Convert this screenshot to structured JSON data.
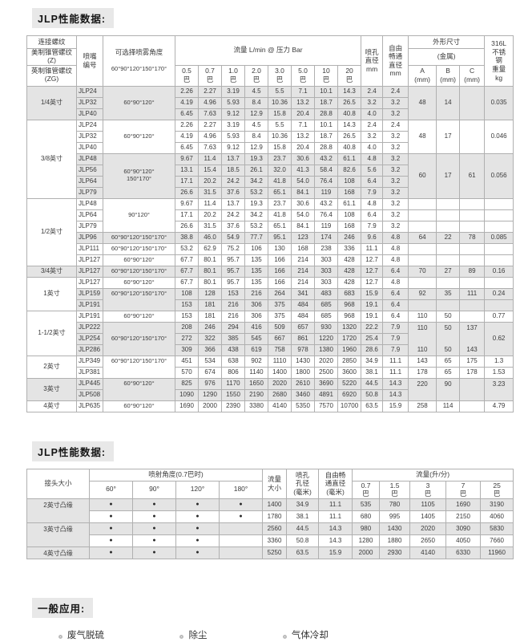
{
  "titles": {
    "t1": "JLP性能数据:",
    "t2": "JLP性能数据:"
  },
  "colors": {
    "shade": "#e4e4e4",
    "border": "#b0b0b0",
    "badge_bg": "#e8e8e8"
  },
  "table1": {
    "header": {
      "thread_title": "连接螺纹",
      "thread_us": "美制锥管螺纹(Z)",
      "thread_uk": "英制锥管螺纹(ZG)",
      "nozzle_l1": "喷嘴",
      "nozzle_l2": "编号",
      "angle_l1": "可选择喷雾角度",
      "angle_l2": "60°90°120°150°170°",
      "flow_title": "流量 L/min @ 压力 Bar",
      "pressures": [
        "0.5",
        "0.7",
        "1.0",
        "2.0",
        "3.0",
        "5.0",
        "10",
        "20"
      ],
      "bar": "巴",
      "orifice_lines": [
        "喷孔",
        "直径",
        "mm"
      ],
      "free_lines": [
        "自由",
        "畅通",
        "直径",
        "mm"
      ],
      "dims_title": "外形尺寸",
      "metal": "(金属)",
      "abc": [
        "A",
        "B",
        "C"
      ],
      "mm_label": "(mm)",
      "weight_lines": [
        "316L",
        "不锈",
        "钢",
        "重量",
        "kg"
      ]
    },
    "rows": [
      {
        "g": {
          "t": "1/4英寸",
          "s": 3
        },
        "m": "JLP24",
        "ang": {
          "t": "60°90°120°",
          "s": 3
        },
        "f": [
          "2.26",
          "2.27",
          "3.19",
          "4.5",
          "5.5",
          "7.1",
          "10.1",
          "14.3"
        ],
        "o": "2.4",
        "fr": "2.4",
        "a": {
          "t": "48",
          "s": 3
        },
        "b": {
          "t": "14",
          "s": 3
        },
        "c": {
          "t": "",
          "s": 3
        },
        "kg": {
          "t": "0.035",
          "s": 3
        },
        "sh": 1
      },
      {
        "g": null,
        "m": "JLP32",
        "ang": null,
        "f": [
          "4.19",
          "4.96",
          "5.93",
          "8.4",
          "10.36",
          "13.2",
          "18.7",
          "26.5"
        ],
        "o": "3.2",
        "fr": "3.2",
        "a": null,
        "b": null,
        "c": null,
        "kg": null,
        "sh": 1
      },
      {
        "g": null,
        "m": "JLP40",
        "ang": null,
        "f": [
          "6.45",
          "7.63",
          "9.12",
          "12.9",
          "15.8",
          "20.4",
          "28.8",
          "40.8"
        ],
        "o": "4.0",
        "fr": "3.2",
        "a": null,
        "b": null,
        "c": null,
        "kg": null,
        "sh": 1
      },
      {
        "g": {
          "t": "3/8英寸",
          "s": 7
        },
        "m": "JLP24",
        "ang": {
          "t": "60°90°120°",
          "s": 3
        },
        "f": [
          "2.26",
          "2.27",
          "3.19",
          "4.5",
          "5.5",
          "7.1",
          "10.1",
          "14.3"
        ],
        "o": "2.4",
        "fr": "2.4",
        "a": {
          "t": "48",
          "s": 3
        },
        "b": {
          "t": "17",
          "s": 3
        },
        "c": {
          "t": "",
          "s": 3
        },
        "kg": {
          "t": "0.046",
          "s": 3
        },
        "sh": 0
      },
      {
        "g": null,
        "m": "JLP32",
        "ang": null,
        "f": [
          "4.19",
          "4.96",
          "5.93",
          "8.4",
          "10.36",
          "13.2",
          "18.7",
          "26.5"
        ],
        "o": "3.2",
        "fr": "3.2",
        "a": null,
        "b": null,
        "c": null,
        "kg": null,
        "sh": 0
      },
      {
        "g": null,
        "m": "JLP40",
        "ang": null,
        "f": [
          "6.45",
          "7.63",
          "9.12",
          "12.9",
          "15.8",
          "20.4",
          "28.8",
          "40.8"
        ],
        "o": "4.0",
        "fr": "3.2",
        "a": null,
        "b": null,
        "c": null,
        "kg": null,
        "sh": 0
      },
      {
        "g": null,
        "m": "JLP48",
        "ang": {
          "t": "60°90°120°",
          "t2": "150°170°",
          "s": 4
        },
        "f": [
          "9.67",
          "11.4",
          "13.7",
          "19.3",
          "23.7",
          "30.6",
          "43.2",
          "61.1"
        ],
        "o": "4.8",
        "fr": "3.2",
        "a": {
          "t": "60",
          "s": 4
        },
        "b": {
          "t": "17",
          "s": 4
        },
        "c": {
          "t": "61",
          "s": 4
        },
        "kg": {
          "t": "0.056",
          "s": 4
        },
        "sh": 1
      },
      {
        "g": null,
        "m": "JLP56",
        "ang": null,
        "f": [
          "13.1",
          "15.4",
          "18.5",
          "26.1",
          "32.0",
          "41.3",
          "58.4",
          "82.6"
        ],
        "o": "5.6",
        "fr": "3.2",
        "a": null,
        "b": null,
        "c": null,
        "kg": null,
        "sh": 1
      },
      {
        "g": null,
        "m": "JLP64",
        "ang": null,
        "f": [
          "17.1",
          "20.2",
          "24.2",
          "34.2",
          "41.8",
          "54.0",
          "76.4",
          "108"
        ],
        "o": "6.4",
        "fr": "3.2",
        "a": null,
        "b": null,
        "c": null,
        "kg": null,
        "sh": 1
      },
      {
        "g": null,
        "m": "JLP79",
        "ang": null,
        "f": [
          "26.6",
          "31.5",
          "37.6",
          "53.2",
          "65.1",
          "84.1",
          "119",
          "168"
        ],
        "o": "7.9",
        "fr": "3.2",
        "a": null,
        "b": null,
        "c": null,
        "kg": null,
        "sh": 1
      },
      {
        "g": {
          "t": "1/2英寸",
          "s": 6
        },
        "m": "JLP48",
        "ang": {
          "t": "90°120°",
          "s": 3
        },
        "f": [
          "9.67",
          "11.4",
          "13.7",
          "19.3",
          "23.7",
          "30.6",
          "43.2",
          "61.1"
        ],
        "o": "4.8",
        "fr": "3.2",
        "a": "",
        "b": "",
        "c": "",
        "kg": "",
        "sh": 0
      },
      {
        "g": null,
        "m": "JLP64",
        "ang": null,
        "f": [
          "17.1",
          "20.2",
          "24.2",
          "34.2",
          "41.8",
          "54.0",
          "76.4",
          "108"
        ],
        "o": "6.4",
        "fr": "3.2",
        "a": "",
        "b": "",
        "c": "",
        "kg": "",
        "sh": 0
      },
      {
        "g": null,
        "m": "JLP79",
        "ang": null,
        "f": [
          "26.6",
          "31.5",
          "37.6",
          "53.2",
          "65.1",
          "84.1",
          "119",
          "168"
        ],
        "o": "7.9",
        "fr": "3.2",
        "a": "",
        "b": "",
        "c": "",
        "kg": "",
        "sh": 0
      },
      {
        "g": null,
        "m": "JLP96",
        "ang": {
          "t": "60°90°120°150°170°"
        },
        "f": [
          "38.8",
          "46.0",
          "54.9",
          "77.7",
          "95.1",
          "123",
          "174",
          "246"
        ],
        "o": "9.6",
        "fr": "4.8",
        "a": "64",
        "b": "22",
        "c": "78",
        "kg": "0.085",
        "sh": 1
      },
      {
        "g": null,
        "m": "JLP111",
        "ang": {
          "t": "60°90°120°150°170°"
        },
        "f": [
          "53.2",
          "62.9",
          "75.2",
          "106",
          "130",
          "168",
          "238",
          "336"
        ],
        "o": "11.1",
        "fr": "4.8",
        "a": "",
        "b": "",
        "c": "",
        "kg": "",
        "sh": 0
      },
      {
        "g": null,
        "m": "JLP127",
        "ang": {
          "t": "60°90°120°"
        },
        "f": [
          "67.7",
          "80.1",
          "95.7",
          "135",
          "166",
          "214",
          "303",
          "428"
        ],
        "o": "12.7",
        "fr": "4.8",
        "a": "",
        "b": "",
        "c": "",
        "kg": "",
        "sh": 0
      },
      {
        "g": {
          "t": "3/4英寸",
          "s": 1
        },
        "m": "JLP127",
        "ang": {
          "t": "60°90°120°150°170°"
        },
        "f": [
          "67.7",
          "80.1",
          "95.7",
          "135",
          "166",
          "214",
          "303",
          "428"
        ],
        "o": "12.7",
        "fr": "6.4",
        "a": "70",
        "b": "27",
        "c": "89",
        "kg": "0.16",
        "sh": 1
      },
      {
        "g": {
          "t": "1英寸",
          "s": 3
        },
        "m": "JLP127",
        "ang": {
          "t": "60°90°120°"
        },
        "f": [
          "67.7",
          "80.1",
          "95.7",
          "135",
          "166",
          "214",
          "303",
          "428"
        ],
        "o": "12.7",
        "fr": "4.8",
        "a": "",
        "b": "",
        "c": "",
        "kg": "",
        "sh": 0
      },
      {
        "g": null,
        "m": "JLP159",
        "ang": {
          "t": "60°90°120°150°170°",
          "s": 2,
          "va": "t"
        },
        "f": [
          "108",
          "128",
          "153",
          "216",
          "264",
          "341",
          "483",
          "683"
        ],
        "o": "15.9",
        "fr": "6.4",
        "a": "92",
        "b": "35",
        "c": "111",
        "kg": "0.24",
        "sh": 1
      },
      {
        "g": null,
        "m": "JLP191",
        "ang": null,
        "f": [
          "153",
          "181",
          "216",
          "306",
          "375",
          "484",
          "685",
          "968"
        ],
        "o": "19.1",
        "fr": "6.4",
        "a": "",
        "b": "",
        "c": "",
        "kg": "",
        "sh": 1
      },
      {
        "g": {
          "t": "1-1/2英寸",
          "s": 4
        },
        "m": "JLP191",
        "ang": {
          "t": "60°90°120°"
        },
        "f": [
          "153",
          "181",
          "216",
          "306",
          "375",
          "484",
          "685",
          "968"
        ],
        "o": "19.1",
        "fr": "6.4",
        "a": "110",
        "b": "50",
        "c": "",
        "kg": "0.77",
        "sh": 0
      },
      {
        "g": null,
        "m": "JLP222",
        "ang": {
          "t": "60°90°120°150°170°",
          "s": 3
        },
        "f": [
          "208",
          "246",
          "294",
          "416",
          "509",
          "657",
          "930",
          "1320"
        ],
        "o": "22.2",
        "fr": "7.9",
        "a": {
          "t": "110",
          "cls": "nb"
        },
        "b": {
          "t": "50",
          "cls": "nb"
        },
        "c": {
          "t": "137",
          "cls": "nb"
        },
        "kg": {
          "t": "0.62",
          "s": 3
        },
        "sh": 1
      },
      {
        "g": null,
        "m": "JLP254",
        "ang": null,
        "f": [
          "272",
          "322",
          "385",
          "545",
          "667",
          "861",
          "1220",
          "1720"
        ],
        "o": "25.4",
        "fr": "7.9",
        "a": {
          "t": "",
          "cls": "nb"
        },
        "b": {
          "t": "",
          "cls": "nb"
        },
        "c": {
          "t": "",
          "cls": "nb"
        },
        "kg": null,
        "sh": 1
      },
      {
        "g": null,
        "m": "JLP286",
        "ang": null,
        "f": [
          "309",
          "366",
          "438",
          "619",
          "758",
          "978",
          "1380",
          "1960"
        ],
        "o": "28.6",
        "fr": "7.9",
        "a": "110",
        "b": "50",
        "c": "143",
        "kg": null,
        "sh": 1
      },
      {
        "g": {
          "t": "2英寸",
          "s": 2
        },
        "m": "JLP349",
        "ang": {
          "t": "60°90°120°150°170°",
          "s": 2,
          "va": "t"
        },
        "f": [
          "451",
          "534",
          "638",
          "902",
          "1110",
          "1430",
          "2020",
          "2850"
        ],
        "o": "34.9",
        "fr": "11.1",
        "a": "143",
        "b": "65",
        "c": "175",
        "kg": "1.3",
        "sh": 0
      },
      {
        "g": null,
        "m": "JLP381",
        "ang": null,
        "f": [
          "570",
          "674",
          "806",
          "1140",
          "1400",
          "1800",
          "2500",
          "3600"
        ],
        "o": "38.1",
        "fr": "11.1",
        "a": "178",
        "b": "65",
        "c": "178",
        "kg": "1.53",
        "sh": 0
      },
      {
        "g": {
          "t": "3英寸",
          "s": 2
        },
        "m": "JLP445",
        "ang": {
          "t": "60°90°120°",
          "s": 2,
          "va": "t"
        },
        "f": [
          "825",
          "976",
          "1170",
          "1650",
          "2020",
          "2610",
          "3690",
          "5220"
        ],
        "o": "44.5",
        "fr": "14.3",
        "a": {
          "t": "220",
          "s": 2,
          "va": "t"
        },
        "b": {
          "t": "90",
          "s": 2,
          "va": "t"
        },
        "c": {
          "t": "",
          "s": 2
        },
        "kg": {
          "t": "3.23",
          "s": 2,
          "va": "t"
        },
        "sh": 1
      },
      {
        "g": null,
        "m": "JLP508",
        "ang": null,
        "f": [
          "1090",
          "1290",
          "1550",
          "2190",
          "2680",
          "3460",
          "4891",
          "6920"
        ],
        "o": "50.8",
        "fr": "14.3",
        "a": null,
        "b": null,
        "c": null,
        "kg": null,
        "sh": 1
      },
      {
        "g": {
          "t": "4英寸",
          "s": 1
        },
        "m": "JLP635",
        "ang": {
          "t": "60°90°120°"
        },
        "f": [
          "1690",
          "2000",
          "2390",
          "3380",
          "4140",
          "5350",
          "7570",
          "10700"
        ],
        "o": "63.5",
        "fr": "15.9",
        "a": "258",
        "b": "114",
        "c": "",
        "kg": "4.79",
        "sh": 0
      }
    ]
  },
  "table2": {
    "header": {
      "conn": "接头大小",
      "spray": "喷射角度(0.7巴时)",
      "angles": [
        "60°",
        "90°",
        "120°",
        "180°"
      ],
      "flowsize_lines": [
        "流量",
        "大小"
      ],
      "orifice_lines": [
        "喷孔",
        "孔径",
        "(毫米)"
      ],
      "free_lines": [
        "自由畅",
        "通直径",
        "(毫米)"
      ],
      "flow_title": "流量(升/分)",
      "pressures": [
        "0.7",
        "1.5",
        "3",
        "7",
        "25"
      ],
      "bar": "巴"
    },
    "rows": [
      {
        "label": {
          "t": "2英寸凸缘",
          "s": 2
        },
        "dots": [
          1,
          1,
          1,
          1
        ],
        "size": "1400",
        "orifice": "34.9",
        "free": "11.1",
        "flows": [
          "535",
          "780",
          "1105",
          "1690",
          "3190"
        ],
        "sh": 1
      },
      {
        "label": null,
        "dots": [
          1,
          1,
          1,
          1
        ],
        "size": "1780",
        "orifice": "38.1",
        "free": "11.1",
        "flows": [
          "680",
          "995",
          "1405",
          "2150",
          "4060"
        ],
        "sh": 0
      },
      {
        "label": {
          "t": "3英寸凸缘",
          "s": 2
        },
        "dots": [
          1,
          1,
          1,
          0
        ],
        "size": "2560",
        "orifice": "44.5",
        "free": "14.3",
        "flows": [
          "980",
          "1430",
          "2020",
          "3090",
          "5830"
        ],
        "sh": 1
      },
      {
        "label": null,
        "dots": [
          1,
          1,
          1,
          0
        ],
        "size": "3360",
        "orifice": "50.8",
        "free": "14.3",
        "flows": [
          "1280",
          "1880",
          "2650",
          "4050",
          "7660"
        ],
        "sh": 0
      },
      {
        "label": {
          "t": "4英寸凸缘",
          "s": 1
        },
        "dots": [
          1,
          1,
          1,
          0
        ],
        "size": "5250",
        "orifice": "63.5",
        "free": "15.9",
        "flows": [
          "2000",
          "2930",
          "4140",
          "6330",
          "11960"
        ],
        "sh": 1
      }
    ]
  },
  "applications": {
    "title": "一般应用:",
    "items": [
      "废气脱硫",
      "除尘",
      "气体冷却"
    ]
  }
}
